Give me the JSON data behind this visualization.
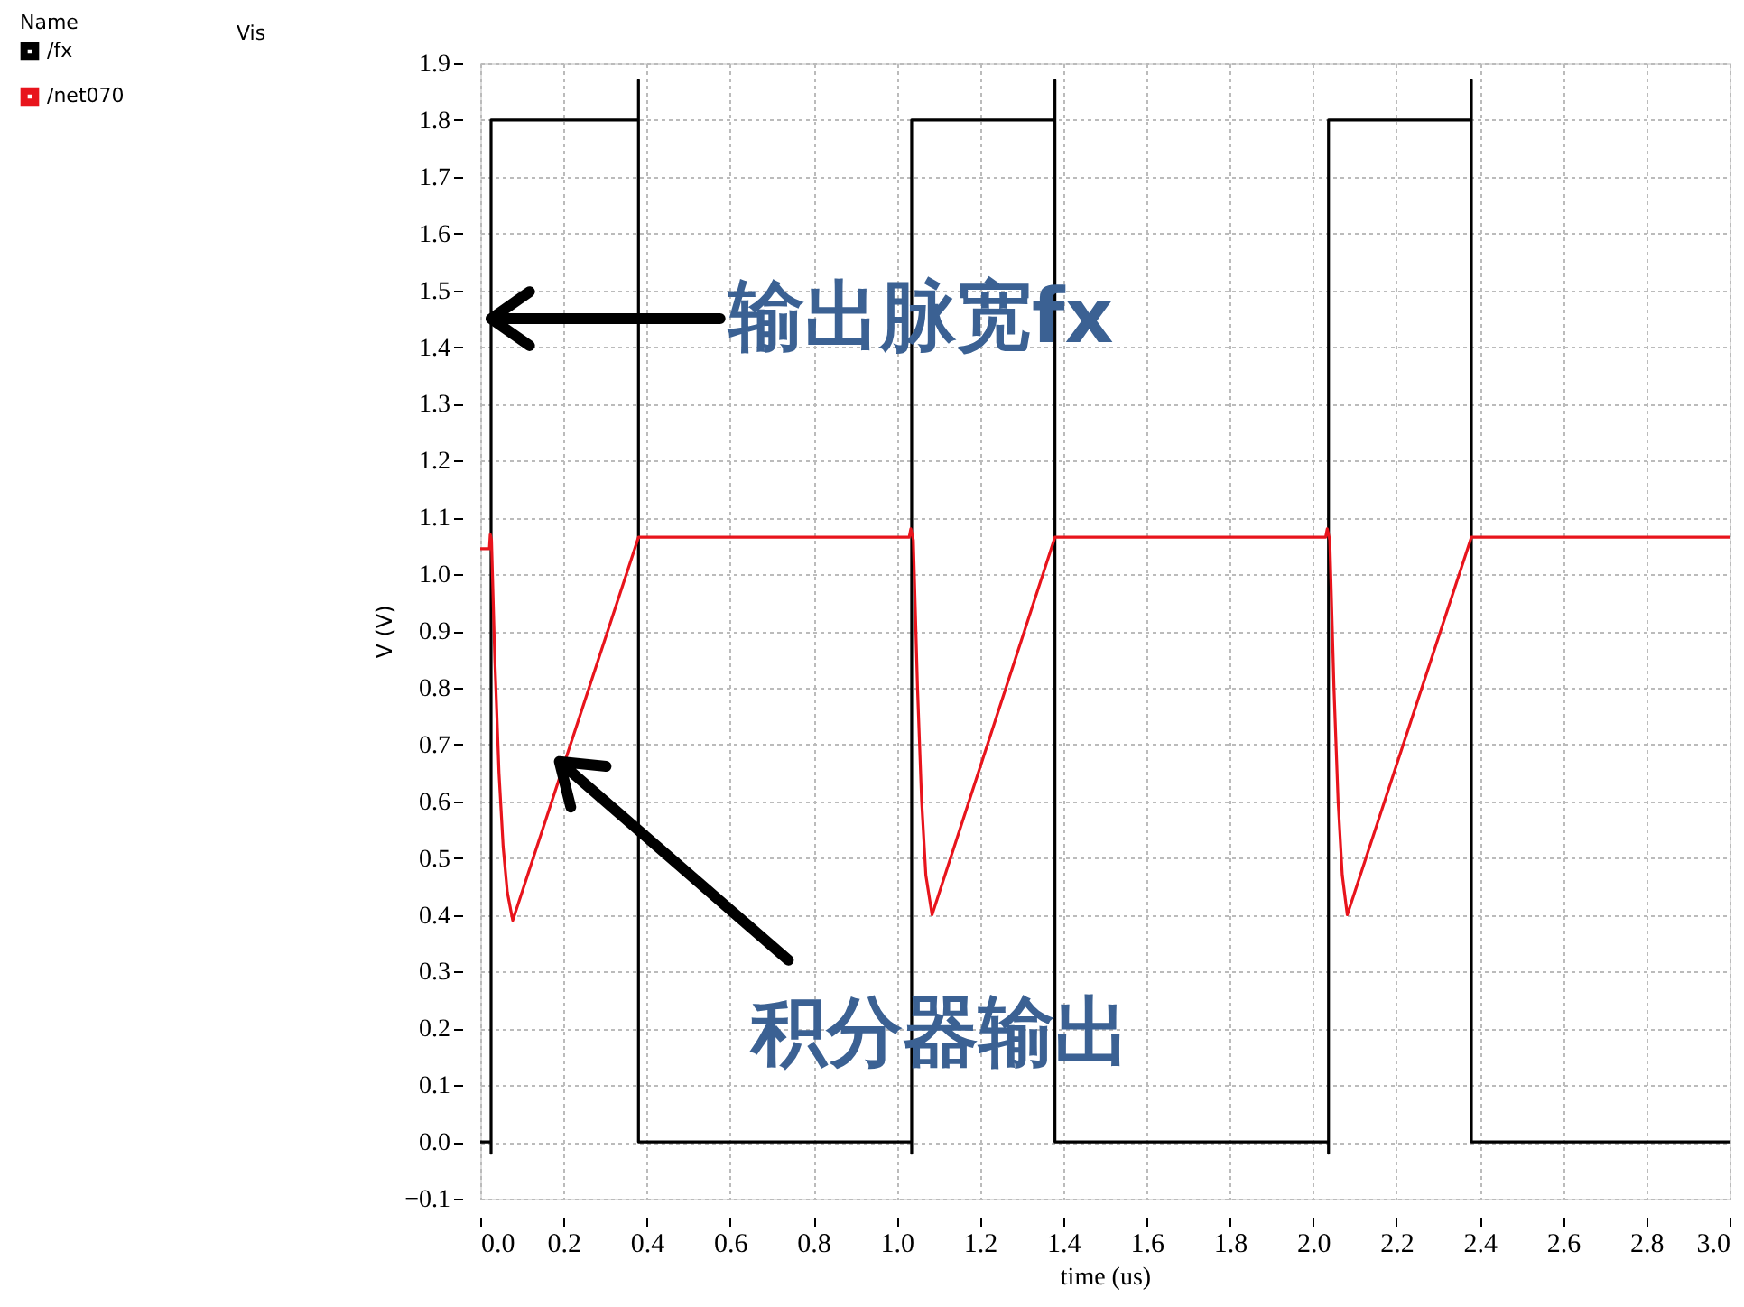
{
  "chart_data": {
    "type": "line",
    "xlabel": "time (us)",
    "ylabel": "V (V)",
    "legend_title": "Name",
    "xlim": [
      0,
      3
    ],
    "ylim": [
      -0.1,
      1.9
    ],
    "xticks": [
      {
        "value": 0,
        "label": "0.0"
      },
      0.2,
      0.4,
      0.6,
      0.8,
      {
        "value": 1,
        "label": "1.0"
      },
      1.2,
      1.4,
      1.6,
      1.8,
      {
        "value": 2,
        "label": "2.0"
      },
      2.2,
      2.4,
      2.6,
      2.8,
      {
        "value": 3,
        "label": "3.0"
      }
    ],
    "yticks": [
      -0.1,
      {
        "value": 0,
        "label": "0.0"
      },
      0.1,
      0.2,
      0.3,
      0.4,
      0.5,
      0.6,
      0.7,
      0.8,
      0.9,
      {
        "value": 1,
        "label": "1.0"
      },
      1.1,
      1.2,
      1.3,
      1.4,
      1.5,
      1.6,
      1.7,
      1.8,
      1.9
    ],
    "grid": true,
    "legend": "top left",
    "marker": "none",
    "line_style": "solid",
    "series": [
      {
        "name": "/fx",
        "color": "#000000",
        "x": [
          0,
          0.026,
          0.026,
          0.026,
          0.38,
          0.38,
          0.38,
          1.036,
          1.036,
          1.036,
          1.38,
          1.38,
          1.38,
          2.037,
          2.037,
          2.037,
          2.38,
          2.38,
          2.38,
          3.0
        ],
        "values": [
          0,
          0,
          -0.02,
          1.8,
          1.8,
          1.87,
          0,
          0,
          -0.02,
          1.8,
          1.8,
          1.87,
          0,
          0,
          -0.02,
          1.8,
          1.8,
          1.87,
          0,
          0
        ]
      },
      {
        "name": "/net070",
        "color": "#e8141c",
        "x": [
          0,
          0.022,
          0.024,
          0.027,
          0.035,
          0.045,
          0.055,
          0.065,
          0.078,
          0.38,
          1.03,
          1.034,
          1.04,
          1.05,
          1.06,
          1.07,
          1.085,
          1.38,
          2.03,
          2.034,
          2.04,
          2.05,
          2.06,
          2.07,
          2.082,
          2.38,
          3.0
        ],
        "values": [
          1.045,
          1.045,
          1.07,
          1.06,
          0.85,
          0.65,
          0.52,
          0.44,
          0.39,
          1.065,
          1.065,
          1.08,
          1.06,
          0.8,
          0.6,
          0.47,
          0.4,
          1.065,
          1.065,
          1.08,
          1.06,
          0.8,
          0.6,
          0.47,
          0.4,
          1.065,
          1.065
        ]
      }
    ],
    "annotations": [
      "Vis",
      "输出脉宽fx",
      "积分器输出"
    ]
  }
}
